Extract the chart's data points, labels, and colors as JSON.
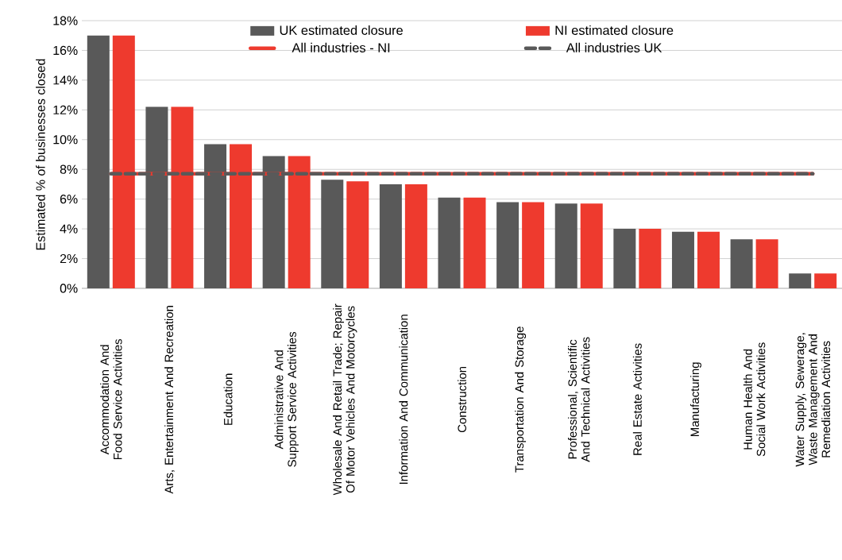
{
  "chart_data": {
    "type": "bar",
    "ylabel": "Estimated  % of businesses closed",
    "categories": [
      "Accommodation And Food Service Activities",
      "Arts, Entertainment And Recreation",
      "Education",
      "Administrative And Support Service Activities",
      "Wholesale And Retail Trade; Repair Of Motor Vehicles And Motorcycles",
      "Information And Communication",
      "Construction",
      "Transportation And Storage",
      "Professional, Scientific And Technical Activities",
      "Real Estate Activities",
      "Manufacturing",
      "Human Health And Social Work Activities",
      "Water Supply, Sewerage, Waste Management And Remediation Activities"
    ],
    "series": [
      {
        "name": "UK estimated closure",
        "color": "#595959",
        "values": [
          17.0,
          12.2,
          9.7,
          8.9,
          7.3,
          7.0,
          6.1,
          5.8,
          5.7,
          4.0,
          3.8,
          3.3,
          1.0
        ]
      },
      {
        "name": "NI estimated closure",
        "color": "#ee3a2e",
        "values": [
          17.0,
          12.2,
          9.7,
          8.9,
          7.2,
          7.0,
          6.1,
          5.8,
          5.7,
          4.0,
          3.8,
          3.3,
          1.0
        ]
      },
      {
        "name": "All industries - NI",
        "type": "line",
        "line_style": "solid",
        "color": "#ee3a2e",
        "values": [
          7.7,
          7.7,
          7.7,
          7.7,
          7.7,
          7.7,
          7.7,
          7.7,
          7.7,
          7.7,
          7.7,
          7.7,
          7.7
        ]
      },
      {
        "name": "All industries UK",
        "type": "line",
        "line_style": "dashed",
        "color": "#595959",
        "values": [
          7.7,
          7.7,
          7.7,
          7.7,
          7.7,
          7.7,
          7.7,
          7.7,
          7.7,
          7.7,
          7.7,
          7.7,
          7.7
        ]
      }
    ],
    "ylim": [
      0,
      18
    ],
    "yticks": [
      {
        "value": 0,
        "label": "0%"
      },
      {
        "value": 2,
        "label": "2%"
      },
      {
        "value": 4,
        "label": "4%"
      },
      {
        "value": 6,
        "label": "6%"
      },
      {
        "value": 8,
        "label": "8%"
      },
      {
        "value": 10,
        "label": "10%"
      },
      {
        "value": 12,
        "label": "12%"
      },
      {
        "value": 14,
        "label": "14%"
      },
      {
        "value": 16,
        "label": "16%"
      },
      {
        "value": 18,
        "label": "18%"
      }
    ],
    "grid": "y",
    "legend": "top"
  }
}
